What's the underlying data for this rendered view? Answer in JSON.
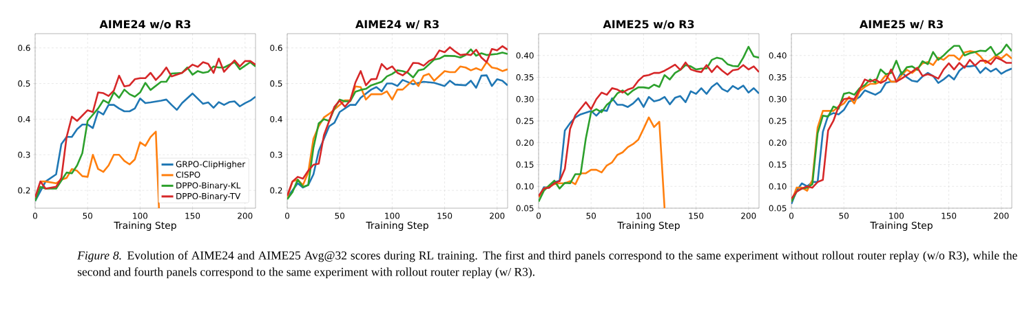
{
  "chart_data": [
    {
      "type": "line",
      "title": "AIME24 w/o R3",
      "xlabel": "Training Step",
      "xlim": [
        0,
        210
      ],
      "ylim": [
        0.15,
        0.64
      ],
      "xticks": [
        0,
        50,
        100,
        150,
        200
      ],
      "yticks": [
        0.2,
        0.3,
        0.4,
        0.5,
        0.6
      ],
      "grid": true,
      "legend": "bottom right",
      "annotations": [
        "*Figure 8.* Evolution of AIME24 and AIME25 Avg@32 scores during RL training. The first and third panels correspond to the same experiment without rollout router replay (w/o R3), while the second and fourth panels correspond to the same experiment with rollout router replay (w/ R3)."
      ],
      "series": [
        {
          "name": "GRPO-ClipHigher",
          "color": "#1f77b4",
          "x": [
            0,
            10,
            20,
            25,
            30,
            35,
            40,
            45,
            50,
            55,
            60,
            65,
            70,
            75,
            80,
            85,
            90,
            95,
            100,
            105,
            110,
            120,
            125,
            130,
            135,
            140,
            150,
            160,
            165,
            170,
            175,
            180,
            185,
            190,
            195,
            200,
            205,
            210
          ],
          "values": [
            0.17,
            0.225,
            0.245,
            0.33,
            0.35,
            0.35,
            0.372,
            0.385,
            0.385,
            0.375,
            0.422,
            0.413,
            0.44,
            0.44,
            0.43,
            0.422,
            0.422,
            0.43,
            0.458,
            0.445,
            0.447,
            0.452,
            0.455,
            0.44,
            0.426,
            0.445,
            0.472,
            0.443,
            0.447,
            0.432,
            0.448,
            0.44,
            0.448,
            0.45,
            0.436,
            0.445,
            0.452,
            0.463
          ]
        },
        {
          "name": "CISPO",
          "color": "#ff7f0e",
          "x": [
            5,
            10,
            20,
            25,
            30,
            35,
            40,
            45,
            50,
            55,
            60,
            65,
            70,
            75,
            80,
            85,
            90,
            95,
            100,
            105,
            110,
            115,
            118
          ],
          "values": [
            0.225,
            0.225,
            0.22,
            0.23,
            0.235,
            0.26,
            0.255,
            0.24,
            0.238,
            0.3,
            0.26,
            0.252,
            0.27,
            0.3,
            0.3,
            0.283,
            0.273,
            0.287,
            0.335,
            0.325,
            0.35,
            0.365,
            0.15
          ]
        },
        {
          "name": "DPPO-Binary-KL",
          "color": "#2ca02c",
          "x": [
            0,
            5,
            10,
            20,
            30,
            35,
            40,
            45,
            50,
            60,
            65,
            70,
            75,
            80,
            85,
            90,
            95,
            100,
            105,
            110,
            120,
            125,
            130,
            140,
            145,
            150,
            155,
            160,
            165,
            170,
            175,
            180,
            190,
            195,
            200,
            205,
            210
          ],
          "values": [
            0.17,
            0.21,
            0.205,
            0.205,
            0.25,
            0.248,
            0.27,
            0.305,
            0.395,
            0.43,
            0.453,
            0.445,
            0.475,
            0.46,
            0.483,
            0.47,
            0.463,
            0.475,
            0.502,
            0.482,
            0.505,
            0.505,
            0.528,
            0.53,
            0.545,
            0.525,
            0.535,
            0.53,
            0.533,
            0.548,
            0.545,
            0.545,
            0.56,
            0.54,
            0.55,
            0.56,
            0.548
          ]
        },
        {
          "name": "DPPO-Binary-TV",
          "color": "#d62728",
          "x": [
            0,
            5,
            10,
            20,
            25,
            30,
            35,
            40,
            50,
            55,
            60,
            65,
            70,
            75,
            80,
            85,
            90,
            95,
            100,
            105,
            110,
            115,
            120,
            125,
            130,
            140,
            150,
            155,
            160,
            165,
            170,
            175,
            180,
            190,
            195,
            200,
            205,
            210
          ],
          "values": [
            0.18,
            0.225,
            0.205,
            0.21,
            0.235,
            0.35,
            0.407,
            0.395,
            0.425,
            0.42,
            0.475,
            0.473,
            0.465,
            0.48,
            0.522,
            0.492,
            0.495,
            0.512,
            0.515,
            0.515,
            0.53,
            0.51,
            0.525,
            0.545,
            0.52,
            0.53,
            0.553,
            0.547,
            0.56,
            0.555,
            0.53,
            0.57,
            0.533,
            0.565,
            0.548,
            0.563,
            0.563,
            0.553
          ]
        }
      ]
    },
    {
      "type": "line",
      "title": "AIME24 w/ R3",
      "xlabel": "Training Step",
      "xlim": [
        0,
        210
      ],
      "ylim": [
        0.15,
        0.64
      ],
      "xticks": [
        0,
        50,
        100,
        150,
        200
      ],
      "yticks": [
        0.2,
        0.3,
        0.4,
        0.5,
        0.6
      ],
      "grid": true,
      "series": [
        {
          "color": "#1f77b4",
          "x": [
            0,
            10,
            15,
            20,
            25,
            30,
            40,
            45,
            50,
            60,
            65,
            70,
            80,
            85,
            90,
            95,
            100,
            105,
            110,
            120,
            130,
            140,
            150,
            155,
            160,
            170,
            175,
            180,
            185,
            190,
            195,
            200,
            205,
            210
          ],
          "values": [
            0.18,
            0.22,
            0.208,
            0.215,
            0.245,
            0.31,
            0.38,
            0.39,
            0.42,
            0.44,
            0.44,
            0.46,
            0.483,
            0.49,
            0.478,
            0.5,
            0.5,
            0.493,
            0.51,
            0.498,
            0.505,
            0.502,
            0.493,
            0.508,
            0.497,
            0.495,
            0.508,
            0.488,
            0.522,
            0.523,
            0.493,
            0.512,
            0.508,
            0.495
          ]
        },
        {
          "color": "#ff7f0e",
          "x": [
            0,
            5,
            10,
            15,
            20,
            25,
            30,
            35,
            40,
            50,
            55,
            60,
            65,
            70,
            75,
            80,
            90,
            95,
            100,
            105,
            110,
            120,
            125,
            130,
            135,
            140,
            150,
            155,
            160,
            165,
            170,
            175,
            180,
            185,
            190,
            195,
            200,
            205,
            210
          ],
          "values": [
            0.18,
            0.225,
            0.23,
            0.215,
            0.25,
            0.345,
            0.38,
            0.405,
            0.415,
            0.44,
            0.453,
            0.453,
            0.492,
            0.49,
            0.455,
            0.47,
            0.47,
            0.478,
            0.455,
            0.483,
            0.483,
            0.51,
            0.493,
            0.522,
            0.527,
            0.508,
            0.535,
            0.532,
            0.532,
            0.548,
            0.545,
            0.537,
            0.543,
            0.537,
            0.56,
            0.545,
            0.542,
            0.535,
            0.54
          ]
        },
        {
          "color": "#2ca02c",
          "x": [
            0,
            5,
            10,
            15,
            20,
            25,
            30,
            35,
            40,
            45,
            50,
            55,
            60,
            65,
            70,
            75,
            80,
            90,
            95,
            100,
            105,
            110,
            115,
            120,
            125,
            130,
            140,
            145,
            150,
            160,
            165,
            170,
            175,
            180,
            185,
            190,
            200,
            205,
            210
          ],
          "values": [
            0.175,
            0.195,
            0.23,
            0.21,
            0.215,
            0.32,
            0.388,
            0.4,
            0.395,
            0.43,
            0.455,
            0.45,
            0.45,
            0.477,
            0.482,
            0.485,
            0.495,
            0.505,
            0.52,
            0.527,
            0.537,
            0.535,
            0.53,
            0.517,
            0.537,
            0.54,
            0.567,
            0.57,
            0.578,
            0.577,
            0.573,
            0.58,
            0.596,
            0.578,
            0.585,
            0.58,
            0.583,
            0.587,
            0.583
          ]
        },
        {
          "color": "#d62728",
          "x": [
            0,
            5,
            10,
            15,
            20,
            25,
            30,
            35,
            40,
            45,
            50,
            55,
            60,
            65,
            70,
            75,
            80,
            85,
            90,
            95,
            100,
            105,
            110,
            115,
            120,
            125,
            130,
            135,
            140,
            145,
            150,
            155,
            160,
            165,
            170,
            175,
            180,
            185,
            190,
            195,
            200,
            205,
            210
          ],
          "values": [
            0.185,
            0.225,
            0.238,
            0.233,
            0.255,
            0.272,
            0.275,
            0.355,
            0.395,
            0.435,
            0.452,
            0.435,
            0.452,
            0.503,
            0.535,
            0.495,
            0.512,
            0.513,
            0.555,
            0.54,
            0.548,
            0.53,
            0.523,
            0.535,
            0.558,
            0.557,
            0.55,
            0.563,
            0.57,
            0.593,
            0.588,
            0.602,
            0.59,
            0.58,
            0.582,
            0.58,
            0.595,
            0.573,
            0.56,
            0.597,
            0.593,
            0.605,
            0.595
          ]
        }
      ]
    },
    {
      "type": "line",
      "title": "AIME25 w/o R3",
      "xlabel": "Training Step",
      "xlim": [
        0,
        210
      ],
      "ylim": [
        0.05,
        0.45
      ],
      "xticks": [
        0,
        50,
        100,
        150,
        200
      ],
      "yticks": [
        0.05,
        {
          "value": 0.1,
          "label": "0.10"
        },
        0.15,
        {
          "value": 0.2,
          "label": "0.20"
        },
        0.25,
        {
          "value": 0.3,
          "label": "0.30"
        },
        0.35,
        {
          "value": 0.4,
          "label": "0.40"
        }
      ],
      "grid": true,
      "series": [
        {
          "color": "#1f77b4",
          "x": [
            0,
            5,
            10,
            15,
            20,
            25,
            30,
            35,
            40,
            50,
            55,
            60,
            65,
            70,
            75,
            80,
            85,
            90,
            95,
            100,
            105,
            110,
            115,
            120,
            125,
            130,
            135,
            140,
            145,
            150,
            155,
            160,
            165,
            170,
            175,
            180,
            185,
            190,
            195,
            200,
            205,
            210
          ],
          "values": [
            0.075,
            0.098,
            0.097,
            0.11,
            0.113,
            0.228,
            0.245,
            0.258,
            0.265,
            0.273,
            0.262,
            0.275,
            0.273,
            0.302,
            0.287,
            0.287,
            0.282,
            0.29,
            0.302,
            0.282,
            0.305,
            0.295,
            0.298,
            0.305,
            0.288,
            0.303,
            0.307,
            0.293,
            0.318,
            0.312,
            0.325,
            0.312,
            0.328,
            0.337,
            0.323,
            0.317,
            0.33,
            0.323,
            0.331,
            0.315,
            0.325,
            0.313
          ]
        },
        {
          "color": "#ff7f0e",
          "x": [
            0,
            5,
            10,
            15,
            20,
            25,
            30,
            35,
            40,
            45,
            50,
            55,
            60,
            65,
            70,
            75,
            80,
            85,
            90,
            95,
            100,
            105,
            110,
            115,
            120
          ],
          "values": [
            0.075,
            0.095,
            0.1,
            0.105,
            0.107,
            0.107,
            0.112,
            0.105,
            0.13,
            0.13,
            0.138,
            0.138,
            0.132,
            0.148,
            0.155,
            0.172,
            0.178,
            0.19,
            0.197,
            0.207,
            0.232,
            0.258,
            0.236,
            0.248,
            0.05
          ]
        },
        {
          "color": "#2ca02c",
          "x": [
            0,
            5,
            10,
            15,
            20,
            25,
            30,
            35,
            40,
            45,
            50,
            55,
            60,
            65,
            70,
            75,
            80,
            85,
            90,
            95,
            100,
            105,
            110,
            115,
            120,
            125,
            130,
            135,
            140,
            145,
            150,
            155,
            160,
            165,
            170,
            175,
            180,
            185,
            190,
            195,
            200,
            205,
            210
          ],
          "values": [
            0.065,
            0.09,
            0.102,
            0.113,
            0.095,
            0.108,
            0.107,
            0.128,
            0.128,
            0.21,
            0.27,
            0.277,
            0.27,
            0.287,
            0.297,
            0.313,
            0.32,
            0.31,
            0.32,
            0.327,
            0.327,
            0.325,
            0.333,
            0.328,
            0.355,
            0.345,
            0.36,
            0.367,
            0.378,
            0.375,
            0.368,
            0.37,
            0.37,
            0.39,
            0.395,
            0.392,
            0.38,
            0.376,
            0.375,
            0.395,
            0.42,
            0.398,
            0.395
          ]
        },
        {
          "color": "#d62728",
          "x": [
            0,
            5,
            10,
            15,
            20,
            25,
            30,
            35,
            40,
            45,
            50,
            55,
            60,
            65,
            70,
            75,
            80,
            85,
            90,
            95,
            100,
            105,
            110,
            115,
            120,
            125,
            130,
            135,
            140,
            145,
            150,
            155,
            160,
            165,
            170,
            175,
            180,
            185,
            190,
            195,
            200,
            205,
            210
          ],
          "values": [
            0.078,
            0.095,
            0.097,
            0.107,
            0.112,
            0.14,
            0.232,
            0.263,
            0.278,
            0.293,
            0.277,
            0.3,
            0.315,
            0.31,
            0.325,
            0.322,
            0.315,
            0.322,
            0.326,
            0.342,
            0.353,
            0.355,
            0.36,
            0.36,
            0.365,
            0.372,
            0.379,
            0.367,
            0.384,
            0.368,
            0.364,
            0.362,
            0.378,
            0.362,
            0.376,
            0.365,
            0.356,
            0.366,
            0.368,
            0.378,
            0.368,
            0.375,
            0.362
          ]
        }
      ]
    },
    {
      "type": "line",
      "title": "AIME25 w/ R3",
      "xlabel": "Training Step",
      "xlim": [
        0,
        210
      ],
      "ylim": [
        0.05,
        0.45
      ],
      "xticks": [
        0,
        50,
        100,
        150,
        200
      ],
      "yticks": [
        0.05,
        {
          "value": 0.1,
          "label": "0.10"
        },
        0.15,
        {
          "value": 0.2,
          "label": "0.20"
        },
        0.25,
        {
          "value": 0.3,
          "label": "0.30"
        },
        0.35,
        {
          "value": 0.4,
          "label": "0.40"
        }
      ],
      "grid": true,
      "series": [
        {
          "color": "#1f77b4",
          "x": [
            0,
            5,
            10,
            15,
            20,
            25,
            30,
            35,
            40,
            45,
            50,
            55,
            60,
            65,
            70,
            75,
            80,
            85,
            90,
            95,
            100,
            105,
            110,
            115,
            120,
            125,
            130,
            135,
            140,
            145,
            150,
            155,
            160,
            165,
            170,
            175,
            180,
            185,
            190,
            195,
            200,
            205,
            210
          ],
          "values": [
            0.06,
            0.09,
            0.107,
            0.1,
            0.11,
            0.11,
            0.225,
            0.262,
            0.268,
            0.265,
            0.275,
            0.295,
            0.298,
            0.305,
            0.32,
            0.315,
            0.31,
            0.317,
            0.337,
            0.34,
            0.34,
            0.362,
            0.35,
            0.342,
            0.34,
            0.352,
            0.36,
            0.353,
            0.337,
            0.345,
            0.355,
            0.345,
            0.365,
            0.375,
            0.375,
            0.377,
            0.36,
            0.372,
            0.363,
            0.37,
            0.358,
            0.365,
            0.37
          ]
        },
        {
          "color": "#ff7f0e",
          "x": [
            0,
            5,
            10,
            15,
            20,
            25,
            30,
            35,
            40,
            45,
            50,
            55,
            60,
            65,
            70,
            75,
            80,
            85,
            90,
            95,
            100,
            105,
            110,
            115,
            120,
            125,
            130,
            135,
            140,
            145,
            150,
            155,
            160,
            165,
            170,
            175,
            180,
            185,
            190,
            195,
            200,
            205,
            210
          ],
          "values": [
            0.065,
            0.097,
            0.097,
            0.09,
            0.115,
            0.235,
            0.273,
            0.273,
            0.273,
            0.283,
            0.29,
            0.305,
            0.29,
            0.318,
            0.328,
            0.335,
            0.335,
            0.34,
            0.355,
            0.34,
            0.34,
            0.355,
            0.367,
            0.36,
            0.37,
            0.382,
            0.385,
            0.378,
            0.395,
            0.39,
            0.4,
            0.4,
            0.39,
            0.407,
            0.41,
            0.408,
            0.398,
            0.383,
            0.39,
            0.4,
            0.393,
            0.403,
            0.393
          ]
        },
        {
          "color": "#2ca02c",
          "x": [
            0,
            5,
            10,
            15,
            20,
            25,
            30,
            35,
            40,
            45,
            50,
            55,
            60,
            65,
            70,
            75,
            80,
            85,
            90,
            95,
            100,
            105,
            110,
            115,
            120,
            125,
            130,
            135,
            140,
            145,
            150,
            155,
            160,
            165,
            170,
            175,
            180,
            185,
            190,
            195,
            200,
            205,
            210
          ],
          "values": [
            0.065,
            0.088,
            0.095,
            0.097,
            0.105,
            0.222,
            0.262,
            0.26,
            0.283,
            0.278,
            0.312,
            0.315,
            0.31,
            0.325,
            0.332,
            0.345,
            0.338,
            0.368,
            0.357,
            0.36,
            0.388,
            0.357,
            0.373,
            0.375,
            0.367,
            0.387,
            0.38,
            0.408,
            0.39,
            0.4,
            0.412,
            0.422,
            0.422,
            0.4,
            0.405,
            0.408,
            0.411,
            0.41,
            0.42,
            0.4,
            0.408,
            0.425,
            0.41
          ]
        },
        {
          "color": "#d62728",
          "x": [
            0,
            5,
            10,
            15,
            20,
            25,
            30,
            35,
            40,
            45,
            50,
            55,
            60,
            65,
            70,
            75,
            80,
            85,
            90,
            95,
            100,
            105,
            110,
            115,
            120,
            125,
            130,
            135,
            140,
            145,
            150,
            155,
            160,
            165,
            170,
            175,
            180,
            185,
            190,
            195,
            200,
            205,
            210
          ],
          "values": [
            0.072,
            0.088,
            0.095,
            0.1,
            0.097,
            0.11,
            0.115,
            0.228,
            0.25,
            0.283,
            0.3,
            0.302,
            0.3,
            0.322,
            0.345,
            0.34,
            0.345,
            0.337,
            0.343,
            0.368,
            0.34,
            0.347,
            0.355,
            0.363,
            0.372,
            0.353,
            0.357,
            0.353,
            0.347,
            0.368,
            0.382,
            0.368,
            0.383,
            0.372,
            0.39,
            0.377,
            0.388,
            0.388,
            0.38,
            0.395,
            0.39,
            0.383,
            0.383
          ]
        }
      ]
    }
  ]
}
